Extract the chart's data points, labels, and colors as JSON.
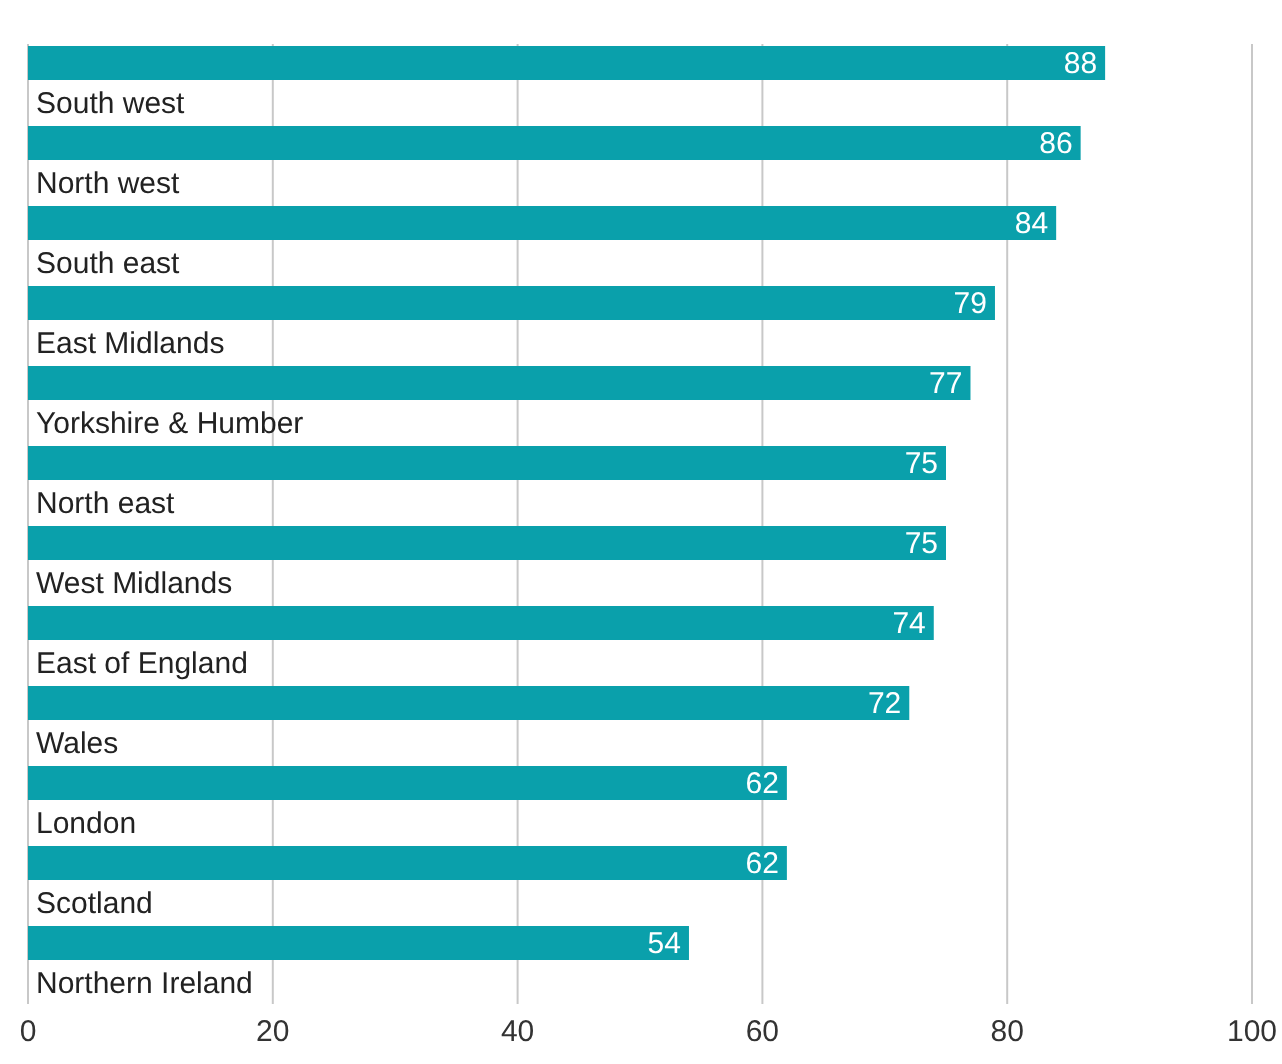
{
  "chart_data": {
    "type": "bar",
    "orientation": "horizontal",
    "categories": [
      "South west",
      "North west",
      "South east",
      "East Midlands",
      "Yorkshire & Humber",
      "North east",
      "West Midlands",
      "East of England",
      "Wales",
      "London",
      "Scotland",
      "Northern Ireland"
    ],
    "values": [
      88,
      86,
      84,
      79,
      77,
      75,
      75,
      74,
      72,
      62,
      62,
      54
    ],
    "color": "#0aa0ab",
    "xlim": [
      0,
      100
    ],
    "xticks": [
      0,
      20,
      40,
      60,
      80,
      100
    ],
    "grid": "x",
    "data_labels": true
  }
}
